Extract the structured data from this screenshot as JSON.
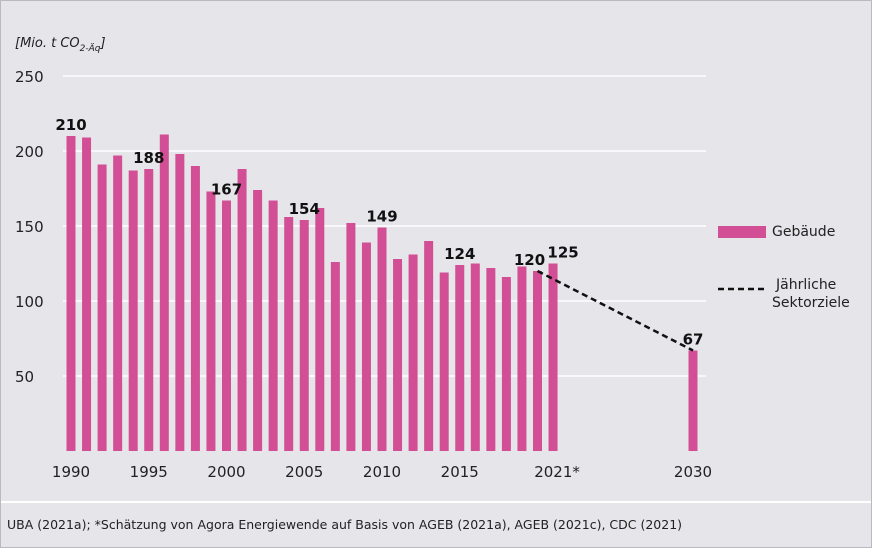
{
  "chart_data": {
    "type": "bar",
    "ylabel": "[Mio. t CO",
    "ylabel_sub": "2-Äq",
    "ylabel_close": "]",
    "ylim": [
      0,
      250
    ],
    "yticks": [
      50,
      100,
      150,
      200,
      250
    ],
    "grid": true,
    "xticks": [
      {
        "year": 1990,
        "label": "1990"
      },
      {
        "year": 1995,
        "label": "1995"
      },
      {
        "year": 2000,
        "label": "2000"
      },
      {
        "year": 2005,
        "label": "2005"
      },
      {
        "year": 2010,
        "label": "2010"
      },
      {
        "year": 2015,
        "label": "2015"
      },
      {
        "year": 2021,
        "label": "2021*"
      },
      {
        "year": 2030,
        "label": "2030"
      }
    ],
    "series": [
      {
        "name": "Gebäude",
        "color": "#d24f95",
        "x": [
          1990,
          1991,
          1992,
          1993,
          1994,
          1995,
          1996,
          1997,
          1998,
          1999,
          2000,
          2001,
          2002,
          2003,
          2004,
          2005,
          2006,
          2007,
          2008,
          2009,
          2010,
          2011,
          2012,
          2013,
          2014,
          2015,
          2016,
          2017,
          2018,
          2019,
          2020,
          2021,
          2030
        ],
        "values": [
          210,
          209,
          191,
          197,
          187,
          188,
          211,
          198,
          190,
          173,
          167,
          188,
          174,
          167,
          156,
          154,
          162,
          126,
          152,
          139,
          149,
          128,
          131,
          140,
          119,
          124,
          125,
          122,
          116,
          123,
          120,
          125,
          67
        ]
      },
      {
        "name": "Jährliche Sektorziele",
        "type": "line",
        "style": "dashed",
        "color": "#111111",
        "x": [
          2020,
          2030
        ],
        "values": [
          120,
          67
        ]
      }
    ],
    "data_labels": [
      {
        "year": 1990,
        "text": "210"
      },
      {
        "year": 1995,
        "text": "188"
      },
      {
        "year": 2000,
        "text": "167"
      },
      {
        "year": 2005,
        "text": "154"
      },
      {
        "year": 2010,
        "text": "149"
      },
      {
        "year": 2015,
        "text": "124"
      },
      {
        "year": 2020,
        "text": "120"
      },
      {
        "year": 2021,
        "text": "125"
      },
      {
        "year": 2030,
        "text": "67"
      }
    ],
    "legend": {
      "placement": "right",
      "items": [
        {
          "label": "Gebäude",
          "kind": "bar"
        },
        {
          "label_line1": "Jährliche",
          "label_line2": "Sektorziele",
          "kind": "dashed-line"
        }
      ]
    }
  },
  "footer": {
    "source": "UBA (2021a); *Schätzung von Agora Energiewende auf Basis von AGEB (2021a), AGEB (2021c), CDC (2021)"
  }
}
